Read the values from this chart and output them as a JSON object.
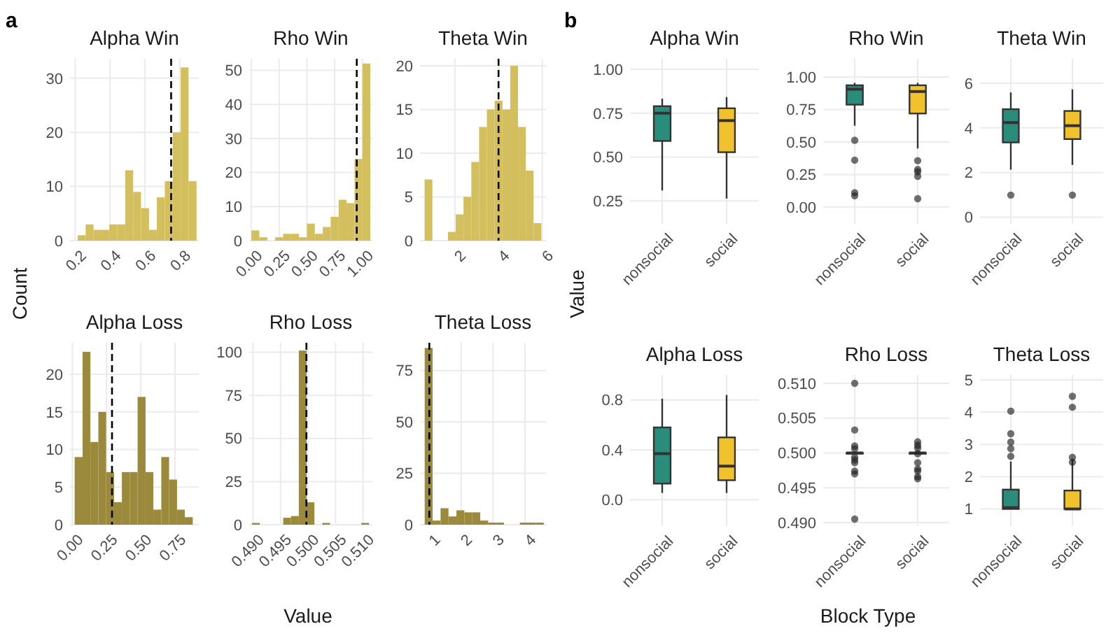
{
  "chart_data": [
    {
      "type": "histogram",
      "title": "Alpha Win",
      "ylabel": "Count",
      "annotations": [
        "a"
      ],
      "color": "#d4bf5e",
      "bins": [
        0.214,
        0.26,
        0.305,
        0.351,
        0.396,
        0.442,
        0.487,
        0.533,
        0.578,
        0.624,
        0.669,
        0.715,
        0.76,
        0.806,
        0.851,
        0.897
      ],
      "values": [
        1,
        3,
        2,
        2,
        3,
        3,
        13,
        9,
        6,
        2,
        8,
        11,
        20,
        32,
        11
      ],
      "xlim": [
        0.17,
        0.91
      ],
      "xticks": [
        0.2,
        0.4,
        0.6,
        0.8
      ],
      "ylim": [
        0,
        33.6
      ],
      "yticks": [
        0,
        10,
        20,
        30
      ],
      "ref_lines": [
        {
          "axis": "x",
          "value": 0.751,
          "line_style": "dashed"
        }
      ],
      "grid": true
    },
    {
      "type": "histogram",
      "title": "Rho Win",
      "color": "#d4bf5e",
      "bins": [
        0,
        0.071,
        0.143,
        0.214,
        0.286,
        0.357,
        0.429,
        0.5,
        0.571,
        0.643,
        0.714,
        0.786,
        0.857,
        0.929,
        1,
        1.071
      ],
      "values": [
        3,
        1,
        0,
        1,
        2,
        2,
        1,
        5,
        2,
        4,
        7,
        12,
        11,
        24,
        52
      ],
      "xlim": [
        -0.02,
        1.09
      ],
      "xticks": [
        {
          "value": 0,
          "label": "0.00"
        },
        0.25,
        {
          "value": 0.5,
          "label": "0.50"
        },
        0.75,
        {
          "value": 1,
          "label": "1.00"
        }
      ],
      "ylim": [
        0,
        53.4
      ],
      "yticks": [
        0,
        10,
        20,
        30,
        40,
        50
      ],
      "ref_lines": [
        {
          "axis": "x",
          "value": 0.949,
          "line_style": "dashed"
        }
      ],
      "grid": true
    },
    {
      "type": "histogram",
      "title": "Theta Win",
      "color": "#d4bf5e",
      "bins": [
        0.62,
        0.976,
        1.332,
        1.688,
        2.044,
        2.4,
        2.756,
        3.112,
        3.468,
        3.824,
        4.18,
        4.536,
        4.892,
        5.248,
        5.604,
        5.96
      ],
      "values": [
        7,
        0,
        0,
        1,
        3,
        5,
        9,
        13,
        15,
        16,
        15,
        20,
        13,
        8,
        2
      ],
      "xlim": [
        0.41,
        6.17
      ],
      "xticks": [
        2,
        4,
        6
      ],
      "ylim": [
        0,
        20.8
      ],
      "yticks": [
        0,
        5,
        10,
        15,
        20
      ],
      "ref_lines": [
        {
          "axis": "x",
          "value": 4,
          "line_style": "dashed"
        }
      ],
      "grid": true
    },
    {
      "type": "histogram",
      "title": "Alpha Loss",
      "color": "#9b8a3b",
      "bins": [
        0.017,
        0.075,
        0.132,
        0.19,
        0.247,
        0.305,
        0.362,
        0.42,
        0.477,
        0.535,
        0.592,
        0.65,
        0.707,
        0.765,
        0.822,
        0.88
      ],
      "values": [
        9,
        23,
        11,
        15,
        7,
        3,
        7,
        7,
        17,
        7,
        2,
        9,
        6,
        2,
        1
      ],
      "xlim": [
        -0.017,
        0.924
      ],
      "xticks": [
        {
          "value": 0,
          "label": "0.00"
        },
        0.25,
        {
          "value": 0.5,
          "label": "0.50"
        },
        0.75
      ],
      "ylim": [
        0,
        24.2
      ],
      "yticks": [
        0,
        5,
        10,
        15,
        20
      ],
      "ref_lines": [
        {
          "axis": "x",
          "value": 0.29,
          "line_style": "dashed"
        }
      ],
      "grid": true
    },
    {
      "type": "histogram",
      "title": "Rho Loss",
      "xlabel": "Value",
      "color": "#9b8a3b",
      "bins": [
        0.4898,
        0.49122,
        0.49264,
        0.49406,
        0.49548,
        0.4969,
        0.49832,
        0.49974,
        0.50116,
        0.50258,
        0.504,
        0.50542,
        0.50684,
        0.50826,
        0.50968,
        0.5111
      ],
      "values": [
        1,
        0,
        0,
        0,
        4,
        5,
        101,
        13,
        0,
        1,
        0,
        0,
        0,
        0,
        1
      ],
      "xlim": [
        0.4893,
        0.5117
      ],
      "xticks": [
        {
          "value": 0.49,
          "label": "0.490"
        },
        0.495,
        {
          "value": 0.5,
          "label": "0.500"
        },
        0.505,
        {
          "value": 0.51,
          "label": "0.510"
        }
      ],
      "ylim": [
        0,
        105.5
      ],
      "yticks": [
        0,
        25,
        50,
        75,
        100
      ],
      "ref_lines": [
        {
          "axis": "x",
          "value": 0.4997,
          "line_style": "dashed"
        }
      ],
      "grid": true
    },
    {
      "type": "histogram",
      "title": "Theta Loss",
      "color": "#9b8a3b",
      "bins": [
        0.854,
        1.103,
        1.352,
        1.601,
        1.85,
        2.099,
        2.348,
        2.597,
        2.846,
        3.095,
        3.344,
        3.593,
        3.842,
        4.091,
        4.34,
        4.589
      ],
      "values": [
        86,
        2,
        8,
        4,
        7,
        6,
        6,
        2,
        1,
        1,
        0,
        0,
        1,
        1,
        1
      ],
      "xlim": [
        0.707,
        4.66
      ],
      "xticks": [
        1,
        2,
        3,
        4
      ],
      "ylim": [
        0,
        88.5
      ],
      "yticks": [
        0,
        25,
        50,
        75
      ],
      "ref_lines": [
        {
          "axis": "x",
          "value": 1,
          "line_style": "dashed"
        }
      ],
      "grid": true
    },
    {
      "type": "box",
      "title": "Alpha Win",
      "ylabel": "Value",
      "annotations": [
        "b"
      ],
      "categories": [
        "nonsocial",
        "social"
      ],
      "colors": [
        "#2a8c7a",
        "#f2c12e"
      ],
      "boxes": [
        {
          "low": 0.31,
          "q1": 0.592,
          "median": 0.75,
          "q3": 0.79,
          "high": 0.833
        },
        {
          "low": 0.264,
          "q1": 0.528,
          "median": 0.708,
          "q3": 0.778,
          "high": 0.842
        }
      ],
      "ylim": [
        0.12,
        1.06
      ],
      "yticks": [
        0.25,
        {
          "value": 0.5,
          "label": "0.50"
        },
        0.75,
        {
          "value": 1,
          "label": "1.00"
        }
      ],
      "grid": true
    },
    {
      "type": "box",
      "title": "Rho Win",
      "categories": [
        "nonsocial",
        "social"
      ],
      "colors": [
        "#2a8c7a",
        "#f2c12e"
      ],
      "boxes": [
        {
          "low": 0.625,
          "q1": 0.787,
          "median": 0.906,
          "q3": 0.936,
          "high": 0.955,
          "outliers": [
            0.513,
            0.36,
            0.11,
            0.086
          ]
        },
        {
          "low": 0.45,
          "q1": 0.719,
          "median": 0.888,
          "q3": 0.936,
          "high": 0.955,
          "outliers": [
            0.356,
            0.288,
            0.27,
            0.236,
            0.064
          ]
        }
      ],
      "ylim": [
        -0.13,
        1.14
      ],
      "yticks": [
        {
          "value": 0,
          "label": "0.00"
        },
        0.25,
        {
          "value": 0.5,
          "label": "0.50"
        },
        0.75,
        {
          "value": 1,
          "label": "1.00"
        }
      ],
      "grid": true
    },
    {
      "type": "box",
      "title": "Theta Win",
      "categories": [
        "nonsocial",
        "social"
      ],
      "colors": [
        "#2a8c7a",
        "#f2c12e"
      ],
      "boxes": [
        {
          "low": 2.13,
          "q1": 3.35,
          "median": 4.24,
          "q3": 4.84,
          "high": 5.59,
          "outliers": [
            0.99
          ]
        },
        {
          "low": 2.34,
          "q1": 3.5,
          "median": 4.1,
          "q3": 4.76,
          "high": 5.73,
          "outliers": [
            0.99
          ]
        }
      ],
      "ylim": [
        -0.3,
        7.1
      ],
      "yticks": [
        0,
        2,
        4,
        6
      ],
      "grid": true
    },
    {
      "type": "box",
      "title": "Alpha Loss",
      "categories": [
        "nonsocial",
        "social"
      ],
      "colors": [
        "#2a8c7a",
        "#f2c12e"
      ],
      "boxes": [
        {
          "low": 0.055,
          "q1": 0.13,
          "median": 0.37,
          "q3": 0.58,
          "high": 0.81
        },
        {
          "low": 0.055,
          "q1": 0.157,
          "median": 0.27,
          "q3": 0.5,
          "high": 0.84
        }
      ],
      "ylim": [
        -0.21,
        1.0
      ],
      "yticks": [
        {
          "value": 0,
          "label": "0.0"
        },
        0.4,
        0.8
      ],
      "grid": true
    },
    {
      "type": "box",
      "title": "Rho Loss",
      "xlabel": "Block Type",
      "categories": [
        "nonsocial",
        "social"
      ],
      "colors": [
        "#2a8c7a",
        "#f2c12e"
      ],
      "boxes": [
        {
          "low": 0.5,
          "q1": 0.5,
          "median": 0.5,
          "q3": 0.5,
          "high": 0.5,
          "outliers": [
            0.51,
            0.5033,
            0.501,
            0.5006,
            0.4994,
            0.499,
            0.4986,
            0.4974,
            0.497,
            0.4905
          ]
        },
        {
          "low": 0.5,
          "q1": 0.5,
          "median": 0.5,
          "q3": 0.5,
          "high": 0.5,
          "outliers": [
            0.5016,
            0.5011,
            0.5007,
            0.4999,
            0.4986,
            0.4977,
            0.4974,
            0.4966,
            0.4963
          ]
        }
      ],
      "ylim": [
        0.4895,
        0.5112
      ],
      "yticks": [
        {
          "value": 0.49,
          "label": "0.490"
        },
        0.495,
        {
          "value": 0.5,
          "label": "0.500"
        },
        0.505,
        {
          "value": 0.51,
          "label": "0.510"
        }
      ],
      "grid": true
    },
    {
      "type": "box",
      "title": "Theta Loss",
      "categories": [
        "nonsocial",
        "social"
      ],
      "colors": [
        "#2a8c7a",
        "#f2c12e"
      ],
      "boxes": [
        {
          "low": 1.0,
          "q1": 1.0,
          "median": 1.04,
          "q3": 1.6,
          "high": 2.47,
          "outliers": [
            4.03,
            3.33,
            3.07,
            2.87,
            2.63
          ]
        },
        {
          "low": 1.0,
          "q1": 1.0,
          "median": 1.0,
          "q3": 1.57,
          "high": 2.53,
          "outliers": [
            4.49,
            4.15,
            2.6,
            2.45
          ]
        }
      ],
      "ylim": [
        0.47,
        5.15
      ],
      "yticks": [
        1,
        2,
        3,
        4,
        5
      ],
      "grid": true
    }
  ]
}
